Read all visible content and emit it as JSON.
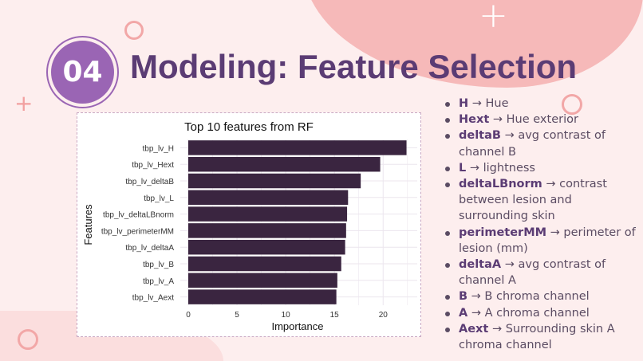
{
  "slide": {
    "number": "04",
    "title": "Modeling: Feature Selection"
  },
  "colors": {
    "title": "#5b3c74",
    "badge": "#9a65b4",
    "bar": "#3a2540",
    "background": "#fdeeee",
    "accent_pink": "#f6b9b9"
  },
  "legend": [
    {
      "key": "H",
      "desc": "→ Hue"
    },
    {
      "key": "Hext",
      "desc": "→ Hue exterior"
    },
    {
      "key": "deltaB",
      "desc": "→ avg contrast of channel B"
    },
    {
      "key": "L",
      "desc": "→ lightness"
    },
    {
      "key": "deltaLBnorm",
      "desc": "→ contrast between lesion and surrounding skin"
    },
    {
      "key": "perimeterMM",
      "desc": "→ perimeter of lesion (mm)"
    },
    {
      "key": "deltaA",
      "desc": "→ avg contrast of channel A"
    },
    {
      "key": "B",
      "desc": "→ B chroma channel"
    },
    {
      "key": "A",
      "desc": "→ A chroma channel"
    },
    {
      "key": "Aext",
      "desc": "→ Surrounding skin A chroma channel"
    }
  ],
  "chart_data": {
    "type": "bar",
    "orientation": "horizontal",
    "title": "Top 10 features from RF",
    "xlabel": "Importance",
    "ylabel": "Features",
    "categories": [
      "tbp_lv_H",
      "tbp_lv_Hext",
      "tbp_lv_deltaB",
      "tbp_lv_L",
      "tbp_lv_deltaLBnorm",
      "tbp_lv_perimeterMM",
      "tbp_lv_deltaA",
      "tbp_lv_B",
      "tbp_lv_A",
      "tbp_lv_Aext"
    ],
    "values": [
      22.4,
      19.7,
      17.7,
      16.4,
      16.3,
      16.2,
      16.1,
      15.7,
      15.3,
      15.2
    ],
    "xlim": [
      0,
      23.5
    ],
    "xticks": [
      0,
      5,
      10,
      15,
      20
    ],
    "grid": true,
    "bar_color": "#3a2540"
  }
}
